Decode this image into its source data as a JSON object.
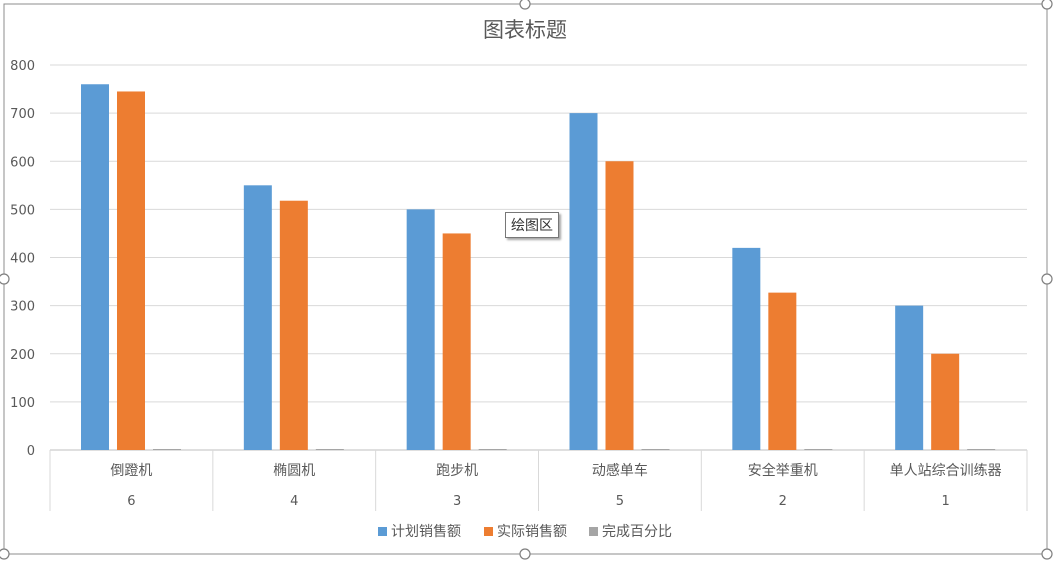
{
  "chart_data": {
    "type": "bar",
    "title": "图表标题",
    "categories": [
      "倒蹬机",
      "椭圆机",
      "跑步机",
      "动感单车",
      "安全举重机",
      "单人站综合训练器"
    ],
    "sub_categories": [
      "6",
      "4",
      "3",
      "5",
      "2",
      "1"
    ],
    "series": [
      {
        "name": "计划销售额",
        "color": "#5B9BD5",
        "values": [
          760,
          550,
          500,
          700,
          420,
          300
        ]
      },
      {
        "name": "实际销售额",
        "color": "#ED7D31",
        "values": [
          745,
          518,
          450,
          600,
          327,
          200
        ]
      },
      {
        "name": "完成百分比",
        "color": "#A5A5A5",
        "values": [
          0.98,
          0.94,
          0.9,
          0.86,
          0.78,
          0.67
        ]
      }
    ],
    "yticks": [
      "0",
      "100",
      "200",
      "300",
      "400",
      "500",
      "600",
      "700",
      "800"
    ],
    "ylim": [
      0,
      800
    ],
    "grid": true,
    "legend": "bottom"
  },
  "tooltip": {
    "label": "绘图区"
  }
}
